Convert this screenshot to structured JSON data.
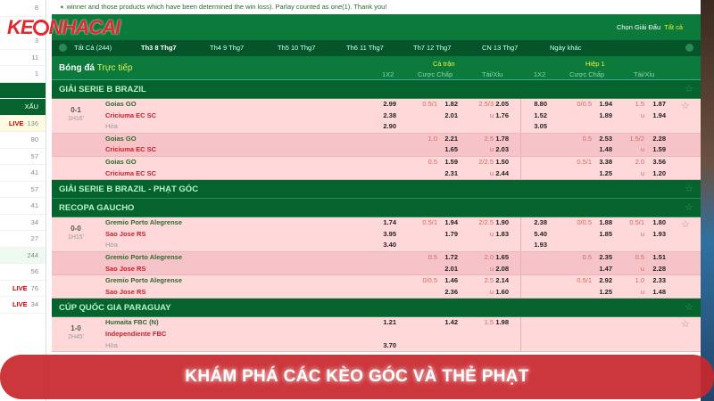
{
  "logo_text": "KEONHACAI",
  "sidebar": [
    {
      "n": "8"
    },
    {
      "n": "1"
    },
    {
      "n": "3"
    },
    {
      "n": "11"
    },
    {
      "n": "1"
    },
    {
      "n": "",
      "cls": "green"
    },
    {
      "n": "XẤU",
      "cls": "green"
    },
    {
      "live": "LIVE",
      "n": "136",
      "cls": "live"
    },
    {
      "n": "80"
    },
    {
      "n": "57"
    },
    {
      "n": "41"
    },
    {
      "n": "57"
    },
    {
      "n": "41"
    },
    {
      "n": "34"
    },
    {
      "n": "27"
    },
    {
      "n": "244",
      "cls": "hl"
    },
    {
      "n": "56"
    },
    {
      "live": "LIVE",
      "n": "76"
    },
    {
      "live": "LIVE",
      "n": "34"
    }
  ],
  "notice": "winner and those products which have been determined the win loss). Parlay counted as one(1). Thank you!",
  "header": {
    "choose_label": "Chọn Giải Đấu",
    "choose_value": "Tất cả"
  },
  "tabs": [
    "Tất Cả (244)",
    "Th3 8 Thg7",
    "Th4 9 Thg7",
    "Th5 10 Thg7",
    "Th6 11 Thg7",
    "Th7 12 Thg7",
    "CN 13 Thg7",
    "Ngày khác"
  ],
  "active_tab": 1,
  "columns": {
    "sport": "Bóng đá",
    "mode": "Trực tiếp",
    "full": "Cả trận",
    "half": "Hiệp 1",
    "c1x2": "1X2",
    "hdp": "Cược Chấp",
    "ou": "Tài/Xỉu"
  },
  "leagues": [
    {
      "name": "GIẢI SERIE B BRAZIL",
      "matches": [
        {
          "score": "0-1",
          "time": "1H16'",
          "home": "Goias GO",
          "away": "Criciuma EC SC",
          "draw": "Hòa",
          "blocks": [
            [
              [
                "2.99",
                "0.5/1",
                "1.82",
                "2.5/3",
                "2.05",
                "8.80",
                "0/0.5",
                "1.94",
                "1.5",
                "1.87"
              ],
              [
                "2.38",
                "",
                "2.01",
                "u",
                "1.76",
                "1.52",
                "",
                "1.89",
                "u",
                "1.94"
              ],
              [
                "2.90",
                "",
                "",
                "",
                "",
                "3.05",
                "",
                "",
                "",
                ""
              ]
            ],
            [
              [
                "",
                "1.0",
                "2.21",
                "2.5",
                "1.78",
                "",
                "0.5",
                "2.53",
                "1.5/2",
                "2.28"
              ],
              [
                "",
                "",
                "1.65",
                "u",
                "2.03",
                "",
                "",
                "1.48",
                "u",
                "1.59"
              ]
            ],
            [
              [
                "",
                "0.5",
                "1.59",
                "2/2.5",
                "1.50",
                "",
                "0.5/1",
                "3.38",
                "2.0",
                "3.56"
              ],
              [
                "",
                "",
                "2.31",
                "u",
                "2.44",
                "",
                "",
                "1.25",
                "u",
                "1.20"
              ]
            ]
          ]
        }
      ]
    },
    {
      "name": "GIẢI SERIE B BRAZIL - PHẠT GÓC",
      "matches": []
    },
    {
      "name": "RECOPA GAUCHO",
      "matches": [
        {
          "score": "0-0",
          "time": "1H15'",
          "home": "Gremio Porto Alegrense",
          "away": "Sao Jose RS",
          "draw": "Hòa",
          "blocks": [
            [
              [
                "1.74",
                "0.5/1",
                "1.94",
                "2/2.5",
                "1.90",
                "2.38",
                "0/0.5",
                "1.88",
                "0.5/1",
                "1.80"
              ],
              [
                "3.95",
                "",
                "1.79",
                "u",
                "1.83",
                "5.40",
                "",
                "1.85",
                "u",
                "1.93"
              ],
              [
                "3.40",
                "",
                "",
                "",
                "",
                "1.93",
                "",
                "",
                "",
                ""
              ]
            ],
            [
              [
                "",
                "0.5",
                "1.72",
                "2.0",
                "1.65",
                "",
                "0.5",
                "2.35",
                "0.5",
                "1.51"
              ],
              [
                "",
                "",
                "2.01",
                "u",
                "2.08",
                "",
                "",
                "1.47",
                "u",
                "2.28"
              ]
            ],
            [
              [
                "",
                "0/0.5",
                "1.46",
                "2.5",
                "2.14",
                "",
                "0.5/1",
                "2.92",
                "1.0",
                "2.33"
              ],
              [
                "",
                "",
                "2.36",
                "u",
                "1.60",
                "",
                "",
                "1.25",
                "u",
                "1.48"
              ]
            ]
          ]
        }
      ]
    },
    {
      "name": "CÚP QUỐC GIA PARAGUAY",
      "matches": [
        {
          "score": "1-0",
          "time": "2H45'",
          "home": "Humaita FBC (N)",
          "away": "Independiente FBC",
          "draw": "Hòa",
          "blocks": [
            [
              [
                "1.21",
                "",
                "1.42",
                "1.5",
                "1.98",
                "",
                "",
                "",
                "",
                ""
              ],
              [
                "",
                "",
                "",
                "",
                "",
                "",
                "",
                "",
                "",
                ""
              ],
              [
                "3.70",
                "",
                "",
                "",
                "",
                "",
                "",
                "",
                "",
                ""
              ]
            ]
          ]
        }
      ]
    }
  ],
  "banner": "KHÁM PHÁ CÁC KÈO GÓC VÀ THẺ PHẠT",
  "colors": {
    "green": "#0b7a3a",
    "dark_green": "#05632e",
    "row_pink": "#ffd8d9",
    "banner_red": "#c8282d"
  }
}
